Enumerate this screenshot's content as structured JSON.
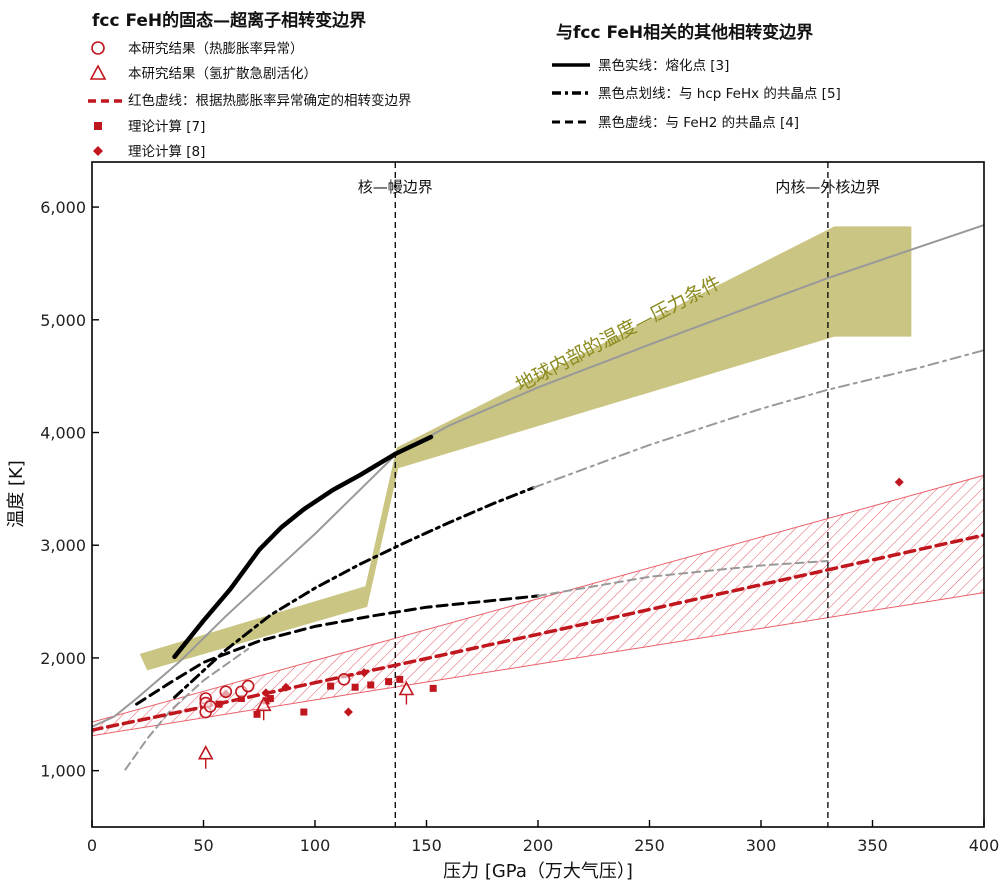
{
  "chart_data": {
    "type": "line",
    "xlabel": "压力 [GPa（万大气压）]",
    "ylabel": "温度 [K]",
    "xlim": [
      0,
      400
    ],
    "ylim": [
      500,
      6400
    ],
    "x_ticks": [
      0,
      50,
      100,
      150,
      200,
      250,
      300,
      350,
      400
    ],
    "y_ticks": [
      1000,
      2000,
      3000,
      4000,
      5000,
      6000
    ],
    "y_tick_labels": [
      "1,000",
      "2,000",
      "3,000",
      "4,000",
      "5,000",
      "6,000"
    ],
    "legend_left": {
      "title": "fcc FeH的固态—超离子相转变边界",
      "items": [
        {
          "label": "本研究结果（热膨胀率异常）",
          "marker": "circle-open"
        },
        {
          "label": "本研究结果（氢扩散急剧活化）",
          "marker": "triangle-open"
        },
        {
          "label": "红色虚线：根据热膨胀率异常确定的相转变边界",
          "marker": "red-dash"
        },
        {
          "label": "理论计算 [7]",
          "marker": "square"
        },
        {
          "label": "理论计算 [8]",
          "marker": "diamond"
        }
      ]
    },
    "legend_right": {
      "title": "与fcc FeH相关的其他相转变边界",
      "items": [
        {
          "label": "黑色实线：熔化点 [3]",
          "style": "solid"
        },
        {
          "label": "黑色点划线：与 hcp FeHx 的共晶点 [5]",
          "style": "dashdot"
        },
        {
          "label": "黑色虚线：与 FeH2 的共晶点 [4]",
          "style": "dashed"
        }
      ]
    },
    "annotations": {
      "cmb_label": "核—幔边界",
      "cmb_pressure": 136,
      "icb_label": "内核—外核边界",
      "icb_pressure": 330,
      "earth_label": "地球内部的温度—压力条件"
    },
    "colors": {
      "red": "#c0161e",
      "red_light": "#e8606a",
      "olive": "#cbc583",
      "olive_text": "#8a8a1e",
      "gray": "#999999",
      "black": "#000000"
    },
    "series": [
      {
        "style": "gray-solid",
        "x": [
          0,
          10,
          20,
          40,
          60,
          100,
          136,
          160,
          200,
          250,
          300,
          330,
          370,
          400
        ],
        "y": [
          1390,
          1480,
          1640,
          1980,
          2370,
          3100,
          3800,
          4060,
          4400,
          4780,
          5150,
          5370,
          5640,
          5840
        ]
      },
      {
        "style": "black-solid",
        "x": [
          37,
          50,
          62,
          75,
          85,
          95,
          108,
          120,
          136,
          152
        ],
        "y": [
          2010,
          2330,
          2610,
          2960,
          3160,
          3320,
          3490,
          3620,
          3810,
          3960
        ]
      },
      {
        "style": "black-dashdot",
        "x": [
          37,
          60,
          80,
          100,
          120,
          140,
          160,
          180,
          198
        ],
        "y": [
          1650,
          2070,
          2380,
          2620,
          2830,
          3020,
          3200,
          3370,
          3510
        ]
      },
      {
        "style": "gray-dashdot",
        "x": [
          198,
          250,
          300,
          330,
          370,
          400
        ],
        "y": [
          3510,
          3890,
          4210,
          4380,
          4570,
          4730
        ]
      },
      {
        "style": "gray-dashed",
        "x": [
          15,
          25,
          35,
          50,
          70
        ],
        "y": [
          1010,
          1290,
          1530,
          1800,
          2080
        ]
      },
      {
        "style": "black-dashed",
        "x": [
          20,
          35,
          50,
          75,
          100,
          125,
          150,
          175,
          200
        ],
        "y": [
          1590,
          1780,
          1960,
          2150,
          2280,
          2370,
          2450,
          2500,
          2550
        ]
      },
      {
        "style": "gray-dashed",
        "x": [
          200,
          250,
          300,
          330
        ],
        "y": [
          2550,
          2720,
          2820,
          2860
        ]
      },
      {
        "style": "red-dashed",
        "x": [
          0,
          50,
          100,
          150,
          200,
          250,
          300,
          350,
          400
        ],
        "y": [
          1360,
          1565,
          1780,
          1995,
          2210,
          2430,
          2650,
          2870,
          3090
        ]
      }
    ],
    "bands": [
      {
        "name": "red-hatched-band",
        "x": [
          0,
          400,
          400,
          0
        ],
        "y": [
          1430,
          3620,
          2580,
          1310
        ]
      }
    ],
    "earth_band": {
      "x": [
        22,
        123,
        137,
        333,
        367,
        367,
        333,
        137,
        123,
        25
      ],
      "y": [
        2030,
        2630,
        3860,
        5820,
        5820,
        4860,
        4860,
        3690,
        2460,
        1900
      ]
    },
    "circles": {
      "x": [
        51,
        51,
        51,
        53,
        60,
        67,
        70,
        113
      ],
      "y": [
        1640,
        1600,
        1520,
        1570,
        1700,
        1700,
        1750,
        1810
      ]
    },
    "triangles": {
      "x": [
        51,
        77,
        141
      ],
      "y": [
        1150,
        1580,
        1720
      ]
    },
    "squares": {
      "x": [
        57,
        67,
        74,
        78,
        80,
        95,
        107,
        118,
        125,
        133,
        138,
        153
      ],
      "y": [
        1590,
        1640,
        1500,
        1620,
        1640,
        1520,
        1750,
        1740,
        1760,
        1790,
        1810,
        1730
      ]
    },
    "diamonds": {
      "x": [
        52,
        60,
        78,
        87,
        115,
        122,
        362
      ],
      "y": [
        1600,
        1680,
        1690,
        1740,
        1520,
        1870,
        3560
      ]
    }
  }
}
